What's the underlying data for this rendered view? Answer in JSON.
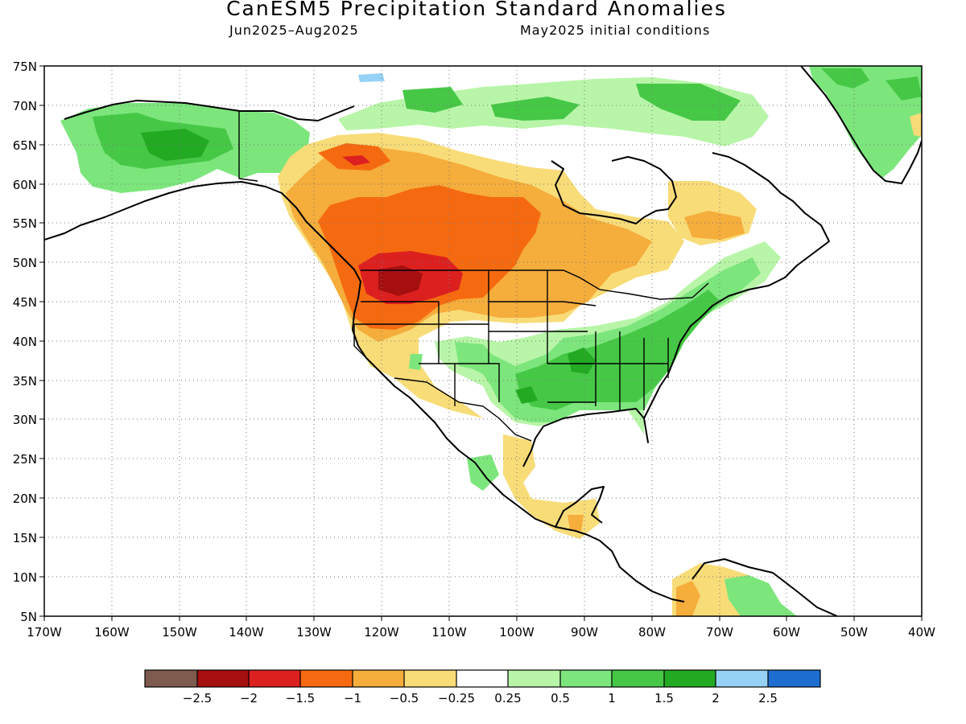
{
  "title": "CanESM5 Precipitation Standard Anomalies",
  "period": "Jun2025–Aug2025",
  "initial": "May2025 initial conditions",
  "lat_labels": [
    "75N",
    "70N",
    "65N",
    "60N",
    "55N",
    "50N",
    "45N",
    "40N",
    "35N",
    "30N",
    "25N",
    "20N",
    "15N",
    "10N",
    "5N"
  ],
  "lon_labels": [
    "170W",
    "160W",
    "150W",
    "140W",
    "130W",
    "120W",
    "110W",
    "100W",
    "90W",
    "80W",
    "70W",
    "60W",
    "50W",
    "40W"
  ],
  "colors": {
    "cb_-3": "#7f5a4e",
    "cb_-2.5": "#a50f0f",
    "cb_-2": "#dc2020",
    "cb_-1.5": "#f56a10",
    "cb_-1": "#f5ad3c",
    "cb_-0.5": "#f8dc78",
    "cb_0": "#ffffff",
    "cb_0.25": "#b8f5a8",
    "cb_0.5": "#7ce67c",
    "cb_1": "#46c846",
    "cb_1.5": "#22aa22",
    "cb_2": "#96d2f5",
    "cb_2.5": "#1e6ed2"
  },
  "colorbar": {
    "colors": [
      "#7f5a4e",
      "#a50f0f",
      "#dc2020",
      "#f56a10",
      "#f5ad3c",
      "#f8dc78",
      "#ffffff",
      "#b8f5a8",
      "#7ce67c",
      "#46c846",
      "#22aa22",
      "#96d2f5",
      "#1e6ed2"
    ],
    "labels": [
      "−2.5",
      "−2",
      "−1.5",
      "−1",
      "−0.5",
      "−0.25",
      "0.25",
      "0.5",
      "1",
      "1.5",
      "2",
      "2.5"
    ]
  }
}
